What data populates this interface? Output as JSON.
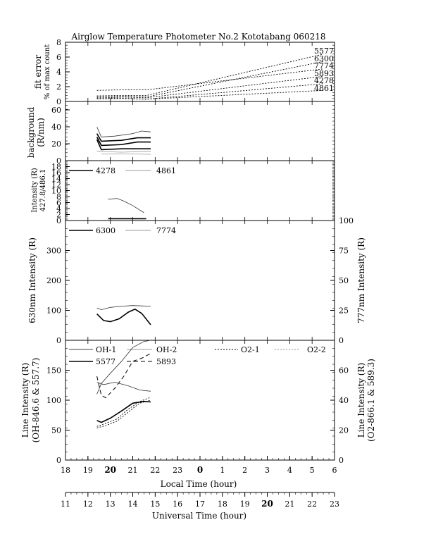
{
  "title": "Airglow Temperature Photometer No.2  Kototabang 060218",
  "chart_data": [
    {
      "id": "fit",
      "type": "line",
      "ylabel": [
        "fit error",
        "% of max count"
      ],
      "ylim": [
        0,
        8
      ],
      "yticks": [
        "0",
        "2",
        "4",
        "6",
        "8"
      ],
      "series_labels": [
        "5577",
        "6300",
        "7774",
        "5893",
        "4278",
        "4861"
      ],
      "series": [
        {
          "name": "5577",
          "style": "dotted",
          "points": [
            [
              12.4,
              0.75
            ],
            [
              13.2,
              0.8
            ],
            [
              14.6,
              0.8
            ],
            [
              22.5,
              6.4
            ]
          ]
        },
        {
          "name": "6300",
          "style": "dotted",
          "points": [
            [
              12.4,
              0.6
            ],
            [
              13.1,
              0.7
            ],
            [
              14.6,
              0.6
            ],
            [
              22.5,
              5.4
            ]
          ]
        },
        {
          "name": "7774",
          "style": "dotted",
          "points": [
            [
              12.4,
              1.5
            ],
            [
              13.2,
              1.55
            ],
            [
              14.7,
              1.6
            ],
            [
              22.5,
              4.4
            ]
          ]
        },
        {
          "name": "5893",
          "style": "dotted",
          "points": [
            [
              12.4,
              0.45
            ],
            [
              13.5,
              0.6
            ],
            [
              14.6,
              0.5
            ],
            [
              22.5,
              3.4
            ]
          ]
        },
        {
          "name": "4278",
          "style": "dotted",
          "points": [
            [
              12.4,
              0.35
            ],
            [
              13.5,
              0.4
            ],
            [
              14.6,
              0.3
            ],
            [
              22.5,
              2.4
            ]
          ]
        },
        {
          "name": "4861",
          "style": "dotted",
          "points": [
            [
              12.4,
              0.5
            ],
            [
              13.5,
              0.45
            ],
            [
              14.6,
              0.3
            ],
            [
              22.5,
              1.5
            ]
          ]
        }
      ]
    },
    {
      "id": "bg",
      "type": "line",
      "ylabel": [
        "background",
        "(R/nm)"
      ],
      "ylim": [
        0,
        70
      ],
      "yticks": [
        "0",
        "20",
        "40",
        "60"
      ],
      "series": [
        {
          "style": "thin",
          "points": [
            [
              12.4,
              40
            ],
            [
              12.6,
              28
            ],
            [
              13.2,
              29
            ],
            [
              14.0,
              32
            ],
            [
              14.4,
              35
            ],
            [
              14.8,
              34
            ]
          ]
        },
        {
          "style": "thick",
          "points": [
            [
              12.4,
              32
            ],
            [
              12.6,
              23
            ],
            [
              13.5,
              24
            ],
            [
              14.2,
              27
            ],
            [
              14.8,
              27
            ]
          ]
        },
        {
          "style": "thick",
          "points": [
            [
              12.4,
              28
            ],
            [
              12.6,
              18
            ],
            [
              13.5,
              19
            ],
            [
              14.2,
              22
            ],
            [
              14.8,
              22
            ]
          ]
        },
        {
          "style": "thick",
          "points": [
            [
              12.4,
              25
            ],
            [
              12.6,
              13
            ],
            [
              13.5,
              14
            ],
            [
              14.8,
              14
            ]
          ]
        },
        {
          "style": "grey",
          "points": [
            [
              12.4,
              11
            ],
            [
              13.5,
              10
            ],
            [
              14.8,
              11
            ]
          ]
        },
        {
          "style": "grey",
          "points": [
            [
              12.6,
              8
            ],
            [
              13.5,
              8
            ],
            [
              14.8,
              7.5
            ]
          ]
        }
      ]
    },
    {
      "id": "blue",
      "type": "line",
      "ylabel": [
        "Intensity (R)",
        "427.8/486.1"
      ],
      "ylim": [
        0,
        20
      ],
      "yticks": [
        "0",
        "2",
        "4",
        "6",
        "8",
        "10",
        "12",
        "14",
        "16",
        "18"
      ],
      "legend": [
        "4278",
        "4861"
      ],
      "series": [
        {
          "name": "4278",
          "style": "thick",
          "points": [
            [
              12.9,
              0.6
            ],
            [
              14.6,
              0.6
            ]
          ]
        },
        {
          "name": "4861",
          "style": "thin",
          "points": [
            [
              12.9,
              7.1
            ],
            [
              13.3,
              7.4
            ],
            [
              13.6,
              6.5
            ],
            [
              14.0,
              5.0
            ],
            [
              14.5,
              2.6
            ]
          ]
        }
      ]
    },
    {
      "id": "red",
      "type": "line",
      "ylabel": "630nm Intensity (R)",
      "ylabel_right": "777nm Intensity (R)",
      "ylim": [
        0,
        400
      ],
      "ylim_right": [
        0,
        100
      ],
      "yticks": [
        "0",
        "100",
        "200",
        "300"
      ],
      "yticks_right": [
        "0",
        "25",
        "50",
        "75",
        "100"
      ],
      "legend": [
        "6300",
        "7774"
      ],
      "series": [
        {
          "name": "6300",
          "style": "thick",
          "points": [
            [
              12.4,
              88
            ],
            [
              12.7,
              66
            ],
            [
              13.0,
              62
            ],
            [
              13.4,
              72
            ],
            [
              13.8,
              94
            ],
            [
              14.1,
              104
            ],
            [
              14.4,
              90
            ],
            [
              14.8,
              52
            ]
          ]
        },
        {
          "name": "7774",
          "style": "thin",
          "axis": "right",
          "points": [
            [
              12.4,
              27
            ],
            [
              12.6,
              25.5
            ],
            [
              13.0,
              27.5
            ],
            [
              13.5,
              28.5
            ],
            [
              14.0,
              29
            ],
            [
              14.8,
              28.5
            ]
          ]
        }
      ]
    },
    {
      "id": "line",
      "type": "line",
      "ylabel": [
        "Line Intensity (R)",
        "(OH-846.6 & 557.7)"
      ],
      "ylabel_right": [
        "Line Intensity (R)",
        "(O2-866.1 & 589.3)"
      ],
      "ylim": [
        0,
        200
      ],
      "ylim_right": [
        0,
        80
      ],
      "yticks": [
        "0",
        "50",
        "100",
        "150"
      ],
      "yticks_right": [
        "0",
        "20",
        "40",
        "60"
      ],
      "legend": [
        "OH-1",
        "OH-2",
        "O2-1",
        "O2-2",
        "5577",
        "5893"
      ],
      "series": [
        {
          "name": "OH-1",
          "style": "thin",
          "points": [
            [
              12.4,
              110
            ],
            [
              12.6,
              128
            ],
            [
              13.0,
              145
            ],
            [
              13.5,
              165
            ],
            [
              14.0,
              188
            ],
            [
              14.5,
              198
            ],
            [
              14.8,
              200
            ]
          ]
        },
        {
          "name": "OH-2",
          "style": "thin",
          "points": [
            [
              12.4,
              130
            ],
            [
              12.7,
              126
            ],
            [
              13.2,
              130
            ],
            [
              13.8,
              124
            ],
            [
              14.3,
              117
            ],
            [
              14.8,
              115
            ]
          ]
        },
        {
          "name": "5577",
          "style": "thick",
          "points": [
            [
              12.4,
              66
            ],
            [
              12.6,
              63
            ],
            [
              13.0,
              70
            ],
            [
              13.5,
              82
            ],
            [
              14.0,
              95
            ],
            [
              14.5,
              98
            ],
            [
              14.8,
              97
            ]
          ]
        },
        {
          "name": "5893",
          "style": "dashed",
          "points": [
            [
              12.4,
              140
            ],
            [
              12.6,
              108
            ],
            [
              12.8,
              104
            ],
            [
              13.2,
              120
            ],
            [
              13.6,
              140
            ],
            [
              14.0,
              165
            ],
            [
              14.4,
              170
            ],
            [
              14.8,
              178
            ]
          ]
        },
        {
          "name": "O2-1",
          "style": "dotted",
          "axis": "right",
          "points": [
            [
              12.4,
              21.5
            ],
            [
              12.8,
              23
            ],
            [
              13.3,
              26
            ],
            [
              13.8,
              32
            ],
            [
              14.3,
              38
            ],
            [
              14.8,
              40
            ]
          ]
        },
        {
          "name": "O2-2",
          "style": "dotted",
          "axis": "right",
          "points": [
            [
              12.4,
              22.5
            ],
            [
              12.8,
              24.5
            ],
            [
              13.3,
              27.5
            ],
            [
              13.8,
              34
            ],
            [
              14.3,
              39
            ],
            [
              14.8,
              42
            ]
          ]
        }
      ]
    }
  ],
  "local_axis": {
    "label": "Local Time (hour)",
    "ticks": [
      "18",
      "19",
      "20",
      "21",
      "22",
      "23",
      "0",
      "1",
      "2",
      "3",
      "4",
      "5",
      "6"
    ],
    "bold": [
      "20",
      "0",
      "20"
    ]
  },
  "ut_axis": {
    "label": "Universal Time (hour)",
    "range": [
      11,
      23
    ],
    "ticks": [
      "11",
      "12",
      "13",
      "14",
      "15",
      "16",
      "17",
      "18",
      "19",
      "20",
      "21",
      "22",
      "23"
    ],
    "bold": [
      "20"
    ]
  }
}
